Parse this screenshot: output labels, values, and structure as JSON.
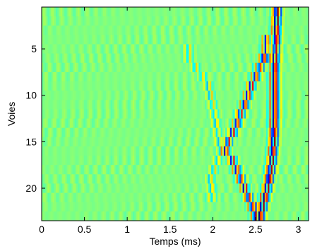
{
  "chart_data": {
    "type": "heatmap",
    "title": "",
    "xlabel": "Temps (ms)",
    "ylabel": "Voies",
    "xlim": [
      0,
      3.12
    ],
    "ylim": [
      0.5,
      23.5
    ],
    "y_reversed": true,
    "rows": 23,
    "xticks": [
      0,
      0.5,
      1,
      1.5,
      2,
      2.5,
      3
    ],
    "xtick_labels": [
      "0",
      "0.5",
      "1",
      "1.5",
      "2",
      "2.5",
      "3"
    ],
    "yticks": [
      5,
      10,
      15,
      20
    ],
    "ytick_labels": [
      "5",
      "10",
      "15",
      "20"
    ],
    "colormap": "jet",
    "background_color": "#a0f05a",
    "grid": false,
    "legend": "none",
    "wavefronts": [
      {
        "name": "",
        "points": [
          [
            1,
            2.75
          ],
          [
            3,
            2.74
          ],
          [
            5,
            2.73
          ],
          [
            7,
            2.72
          ],
          [
            9,
            2.72
          ],
          [
            11,
            2.72
          ],
          [
            13,
            2.72
          ],
          [
            15,
            2.71
          ],
          [
            17,
            2.69
          ],
          [
            19,
            2.66
          ],
          [
            21,
            2.61
          ],
          [
            23,
            2.55
          ]
        ],
        "amplitude": 1.0
      },
      {
        "name": "",
        "points": [
          [
            5,
            2.63
          ],
          [
            7,
            2.55
          ],
          [
            9,
            2.45
          ],
          [
            11,
            2.37
          ],
          [
            13,
            2.28
          ],
          [
            15,
            2.18
          ],
          [
            16,
            2.15
          ],
          [
            17,
            2.23
          ],
          [
            19,
            2.33
          ],
          [
            21,
            2.42
          ],
          [
            23,
            2.5
          ]
        ],
        "amplitude": 0.8
      },
      {
        "name": "",
        "points": [
          [
            6,
            1.72
          ],
          [
            9,
            1.95
          ],
          [
            12,
            2.02
          ],
          [
            14,
            2.06
          ],
          [
            16,
            2.1
          ],
          [
            19,
            1.97
          ],
          [
            21,
            2.0
          ]
        ],
        "amplitude": 0.35
      }
    ]
  }
}
